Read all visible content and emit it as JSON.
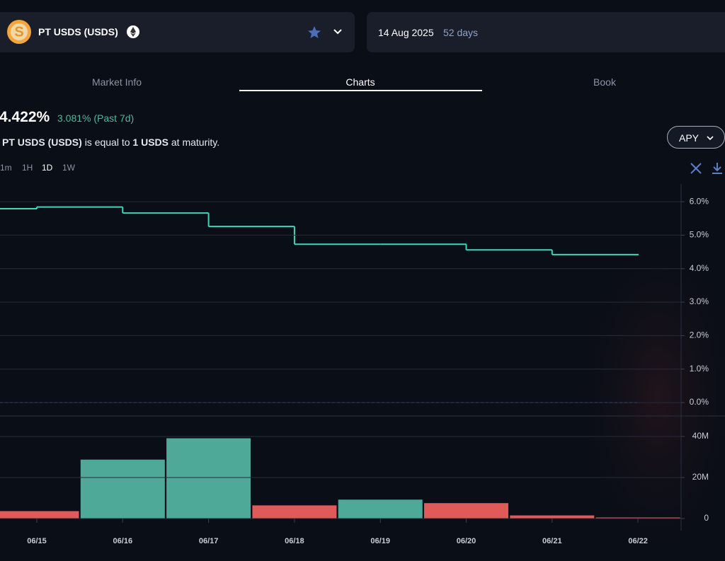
{
  "header": {
    "market": "PT USDS (USDS)",
    "maturity_date": "14 Aug 2025",
    "days_left": "52 days"
  },
  "tabs": [
    "Market Info",
    "Charts",
    "Book"
  ],
  "active_tab": 1,
  "summary": {
    "apy": "4.422%",
    "change": "3.081% (Past 7d)",
    "statement": [
      "PT USDS (USDS)",
      "is equal to",
      "1 USDS",
      "at maturity."
    ]
  },
  "dropdown": "APY",
  "timeframes": [
    "1m",
    "1H",
    "1D",
    "1W"
  ],
  "active_timeframe": 2,
  "chart_data": [
    {
      "type": "line",
      "step": true,
      "categories": [
        null,
        "06/15",
        "06/16",
        "06/17",
        "06/18",
        "06/19",
        "06/20",
        "06/21",
        "06/22"
      ],
      "values": [
        5.79,
        5.84,
        5.66,
        5.26,
        4.73,
        4.73,
        4.56,
        4.42,
        4.42
      ],
      "color": "#3ed6b8",
      "ylim": [
        -0.4,
        6.53
      ],
      "yticks": [
        {
          "value": 0,
          "label": "0.0%"
        },
        {
          "value": 1,
          "label": "1.0%"
        },
        {
          "value": 2,
          "label": "2.0%"
        },
        {
          "value": 3,
          "label": "3.0%"
        },
        {
          "value": 4,
          "label": "4.0%"
        },
        {
          "value": 5,
          "label": "5.0%"
        },
        {
          "value": 6,
          "label": "6.0%"
        }
      ],
      "grid": true,
      "reference_line": 0,
      "reference_color": "#5b6cff"
    },
    {
      "type": "bar",
      "values": [
        null,
        3800000,
        28900000,
        39300000,
        6600000,
        9400000,
        7700000,
        1700000,
        700000
      ],
      "colors": [
        null,
        "#e05a5a",
        "#4fa999",
        "#4fa999",
        "#e05a5a",
        "#4fa999",
        "#e05a5a",
        "#e05a5a",
        "#e05a5a"
      ],
      "ylim": [
        0,
        50000000
      ],
      "yticks": [
        0,
        {
          "value": 20000000,
          "label": "20M"
        },
        {
          "value": 40000000,
          "label": "40M"
        }
      ],
      "grid": true
    }
  ]
}
